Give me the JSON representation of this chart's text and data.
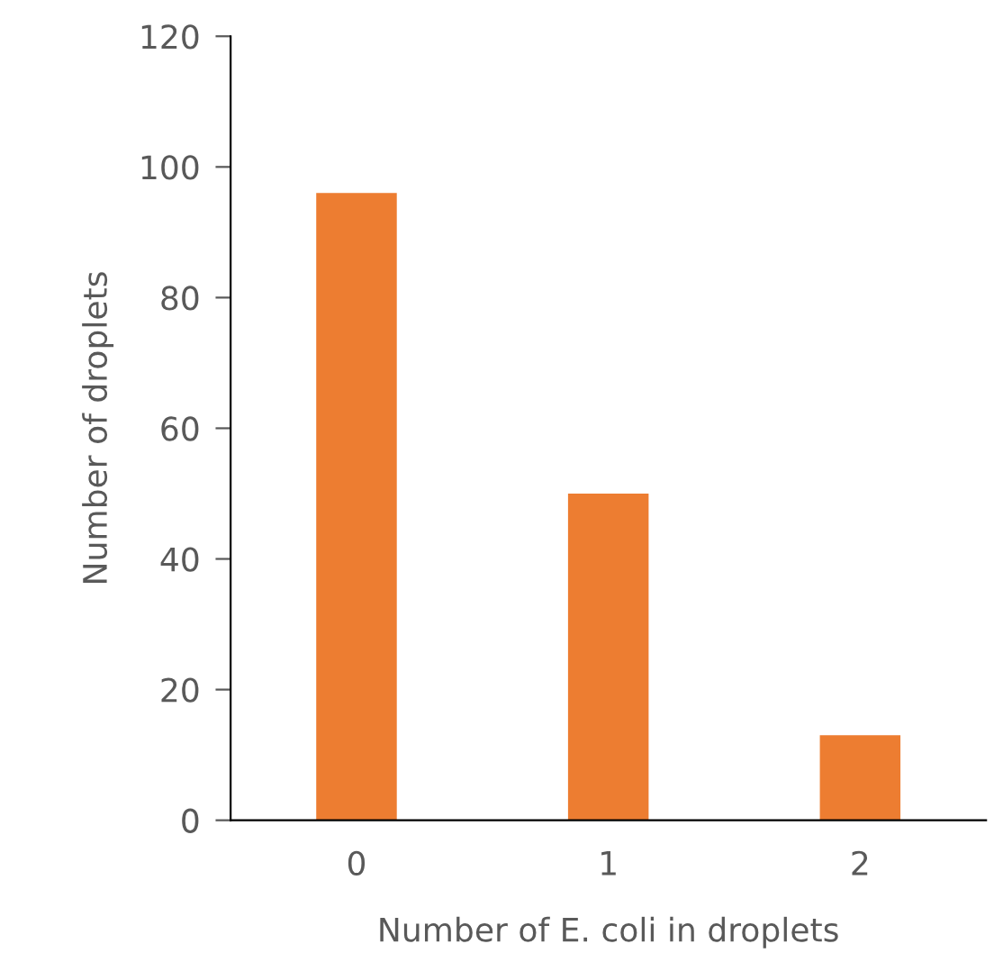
{
  "chart_data": {
    "type": "bar",
    "xlabel": "Number of E. coli in droplets",
    "ylabel": "Number of droplets",
    "categories": [
      "0",
      "1",
      "2"
    ],
    "values": [
      96,
      50,
      13
    ],
    "color": "#ed7d31",
    "ylim": [
      0,
      120
    ],
    "yticks": [
      0,
      20,
      40,
      60,
      80,
      100,
      120
    ],
    "grid": false,
    "legend": false
  }
}
